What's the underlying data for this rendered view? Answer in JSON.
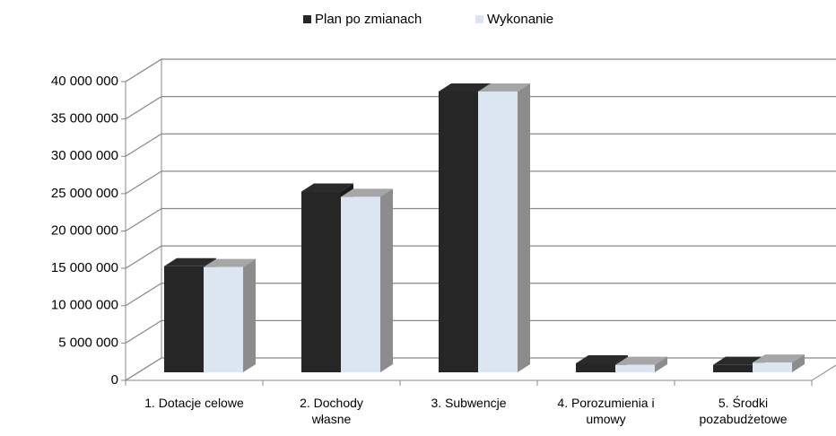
{
  "chart_data": {
    "type": "bar3d",
    "categories": [
      "1. Dotacje celowe",
      "2. Dochody własne",
      "3. Subwencje",
      "4. Porozumienia i umowy",
      "5. Środki pozabudżetowe"
    ],
    "series": [
      {
        "name": "Plan po zmianach",
        "color": "#262626",
        "values": [
          14200000,
          24200000,
          37600000,
          1200000,
          1000000
        ]
      },
      {
        "name": "Wykonanie",
        "color": "#dce6f2",
        "values": [
          14100000,
          23500000,
          37600000,
          1000000,
          1300000
        ]
      }
    ],
    "ylim": [
      0,
      40000000
    ],
    "yticks": [
      {
        "value": 0,
        "label": "0"
      },
      {
        "value": 5000000,
        "label": "5 000 000"
      },
      {
        "value": 10000000,
        "label": "10 000 000"
      },
      {
        "value": 15000000,
        "label": "15 000 000"
      },
      {
        "value": 20000000,
        "label": "20 000 000"
      },
      {
        "value": 25000000,
        "label": "25 000 000"
      },
      {
        "value": 30000000,
        "label": "30 000 000"
      },
      {
        "value": 35000000,
        "label": "35 000 000"
      },
      {
        "value": 40000000,
        "label": "40 000 000"
      }
    ],
    "grid": true,
    "legend": "top"
  }
}
